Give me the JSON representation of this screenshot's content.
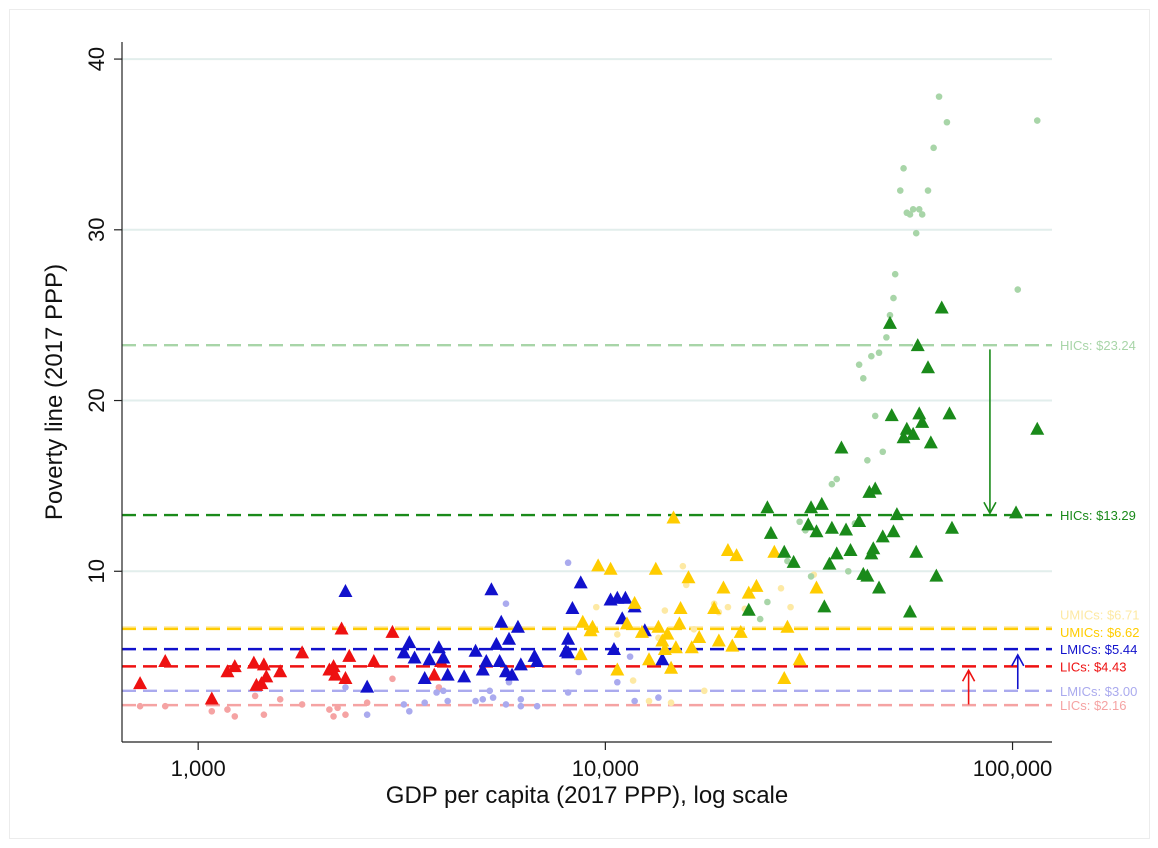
{
  "chart_data": {
    "type": "scatter",
    "title": "",
    "xlabel": "GDP per capita (2017 PPP), log scale",
    "ylabel": "Poverty line (2017 PPP)",
    "x_scale": "log",
    "xlim": [
      650,
      125000
    ],
    "ylim": [
      0,
      41
    ],
    "x_ticks": [
      1000,
      10000,
      100000
    ],
    "x_tick_labels": [
      "1,000",
      "10,000",
      "100,000"
    ],
    "y_ticks": [
      10,
      20,
      30,
      40
    ],
    "y_tick_labels": [
      "10",
      "20",
      "30",
      "40"
    ],
    "grid": "horizontal",
    "colors": {
      "LIC": "#ee1111",
      "LIC_light": "#f5a3a3",
      "LMIC": "#1111cc",
      "LMIC_light": "#aaaaee",
      "UMIC": "#ffcc00",
      "UMIC_light": "#fde9a4",
      "HIC": "#1a8a1a",
      "HIC_light": "#a8d5a8"
    },
    "reference_lines": [
      {
        "label": "HICs: $23.24",
        "value": 23.24,
        "color": "#a8d5a8"
      },
      {
        "label": "HICs: $13.29",
        "value": 13.29,
        "color": "#1a8a1a"
      },
      {
        "label": "UMICs: $6.71",
        "value": 6.71,
        "color": "#fde9a4"
      },
      {
        "label": "UMICs: $6.62",
        "value": 6.62,
        "color": "#ffcc00"
      },
      {
        "label": "LMICs: $5.44",
        "value": 5.44,
        "color": "#1111cc"
      },
      {
        "label": "LICs: $4.43",
        "value": 4.43,
        "color": "#ee1111"
      },
      {
        "label": "LMICs: $3.00",
        "value": 3.0,
        "color": "#aaaaee"
      },
      {
        "label": "LICs: $2.16",
        "value": 2.16,
        "color": "#f5a3a3"
      }
    ],
    "arrows": [
      {
        "x": 88000,
        "from": 23.0,
        "to": 13.4,
        "color": "#1a8a1a"
      },
      {
        "x": 103000,
        "from": 3.1,
        "to": 5.1,
        "color": "#1111cc"
      },
      {
        "x": 78000,
        "from": 2.2,
        "to": 4.2,
        "color": "#ee1111"
      }
    ],
    "series": [
      {
        "name": "LIC",
        "marker": "triangle",
        "color": "#ee1111",
        "points": [
          [
            720,
            3.4
          ],
          [
            830,
            4.7
          ],
          [
            1080,
            2.5
          ],
          [
            1180,
            4.1
          ],
          [
            1230,
            4.4
          ],
          [
            1370,
            4.6
          ],
          [
            1390,
            3.3
          ],
          [
            1430,
            3.4
          ],
          [
            1450,
            4.5
          ],
          [
            1470,
            3.8
          ],
          [
            1590,
            4.1
          ],
          [
            1800,
            5.2
          ],
          [
            2100,
            4.2
          ],
          [
            2150,
            4.4
          ],
          [
            2170,
            3.9
          ],
          [
            2250,
            6.6
          ],
          [
            2300,
            3.7
          ],
          [
            2350,
            5.0
          ],
          [
            2700,
            4.7
          ],
          [
            3000,
            6.4
          ],
          [
            3800,
            3.9
          ],
          [
            3950,
            4.7
          ]
        ]
      },
      {
        "name": "LIC_light",
        "marker": "dot",
        "color": "#f5a3a3",
        "points": [
          [
            720,
            2.1
          ],
          [
            830,
            2.1
          ],
          [
            1080,
            1.8
          ],
          [
            1180,
            1.9
          ],
          [
            1230,
            1.5
          ],
          [
            1380,
            2.7
          ],
          [
            1450,
            1.6
          ],
          [
            1590,
            2.5
          ],
          [
            1800,
            2.2
          ],
          [
            2100,
            1.9
          ],
          [
            2150,
            1.5
          ],
          [
            2200,
            2.0
          ],
          [
            2300,
            1.6
          ],
          [
            2600,
            2.3
          ],
          [
            3000,
            3.7
          ],
          [
            3900,
            3.2
          ]
        ]
      },
      {
        "name": "LMIC",
        "marker": "triangle",
        "color": "#1111cc",
        "points": [
          [
            2300,
            8.8
          ],
          [
            2600,
            3.2
          ],
          [
            3200,
            5.2
          ],
          [
            3300,
            5.8
          ],
          [
            3400,
            4.9
          ],
          [
            3600,
            3.7
          ],
          [
            3700,
            4.8
          ],
          [
            3900,
            5.5
          ],
          [
            4000,
            4.9
          ],
          [
            4100,
            3.9
          ],
          [
            4500,
            3.8
          ],
          [
            4800,
            5.3
          ],
          [
            5000,
            4.2
          ],
          [
            5100,
            4.7
          ],
          [
            5250,
            8.9
          ],
          [
            5400,
            5.7
          ],
          [
            5500,
            4.7
          ],
          [
            5550,
            7.0
          ],
          [
            5700,
            4.1
          ],
          [
            5800,
            6.0
          ],
          [
            5900,
            3.9
          ],
          [
            6100,
            6.7
          ],
          [
            6200,
            4.5
          ],
          [
            6700,
            5.0
          ],
          [
            6800,
            4.7
          ],
          [
            8000,
            5.3
          ],
          [
            8100,
            5.2
          ],
          [
            8100,
            6.0
          ],
          [
            8300,
            7.8
          ],
          [
            8700,
            9.3
          ],
          [
            10300,
            8.3
          ],
          [
            10500,
            5.4
          ],
          [
            10700,
            8.4
          ],
          [
            11000,
            7.2
          ],
          [
            11200,
            8.4
          ],
          [
            11800,
            7.9
          ],
          [
            12500,
            6.5
          ],
          [
            13800,
            4.8
          ]
        ]
      },
      {
        "name": "LMIC_light",
        "marker": "dot",
        "color": "#aaaaee",
        "points": [
          [
            2300,
            3.2
          ],
          [
            2600,
            1.6
          ],
          [
            3200,
            2.2
          ],
          [
            3300,
            1.8
          ],
          [
            3600,
            2.3
          ],
          [
            3850,
            2.9
          ],
          [
            4000,
            3.0
          ],
          [
            4100,
            2.4
          ],
          [
            4800,
            2.4
          ],
          [
            5000,
            2.5
          ],
          [
            5200,
            3.0
          ],
          [
            5300,
            2.6
          ],
          [
            5700,
            2.2
          ],
          [
            5700,
            8.1
          ],
          [
            5800,
            3.5
          ],
          [
            6200,
            2.1
          ],
          [
            6200,
            2.5
          ],
          [
            6800,
            2.1
          ],
          [
            8100,
            2.9
          ],
          [
            8100,
            10.5
          ],
          [
            8600,
            4.1
          ],
          [
            10700,
            3.5
          ],
          [
            11800,
            2.4
          ],
          [
            13500,
            2.6
          ],
          [
            11500,
            5.0
          ]
        ]
      },
      {
        "name": "UMIC",
        "marker": "triangle",
        "color": "#ffcc00",
        "points": [
          [
            8700,
            5.1
          ],
          [
            8800,
            7.0
          ],
          [
            9200,
            6.5
          ],
          [
            9300,
            6.7
          ],
          [
            9600,
            10.3
          ],
          [
            10300,
            10.1
          ],
          [
            10700,
            4.2
          ],
          [
            11300,
            6.9
          ],
          [
            11800,
            8.1
          ],
          [
            12300,
            6.4
          ],
          [
            12800,
            4.8
          ],
          [
            13300,
            10.1
          ],
          [
            13500,
            6.7
          ],
          [
            13800,
            5.9
          ],
          [
            14000,
            5.4
          ],
          [
            14200,
            6.3
          ],
          [
            14500,
            4.3
          ],
          [
            14700,
            13.1
          ],
          [
            14900,
            5.5
          ],
          [
            15200,
            6.9
          ],
          [
            15300,
            7.8
          ],
          [
            16000,
            9.6
          ],
          [
            16300,
            5.5
          ],
          [
            17000,
            6.1
          ],
          [
            18500,
            7.8
          ],
          [
            19000,
            5.9
          ],
          [
            19500,
            9.0
          ],
          [
            20000,
            11.2
          ],
          [
            20500,
            5.6
          ],
          [
            21000,
            10.9
          ],
          [
            21500,
            6.4
          ],
          [
            22500,
            8.7
          ],
          [
            23500,
            9.1
          ],
          [
            26000,
            11.1
          ],
          [
            27500,
            3.7
          ],
          [
            28000,
            6.7
          ],
          [
            30000,
            4.8
          ],
          [
            33000,
            9.0
          ]
        ]
      },
      {
        "name": "UMIC_light",
        "marker": "dot",
        "color": "#fde9a4",
        "points": [
          [
            9500,
            7.9
          ],
          [
            10700,
            6.3
          ],
          [
            11700,
            3.6
          ],
          [
            12800,
            2.4
          ],
          [
            13500,
            6.1
          ],
          [
            14000,
            7.7
          ],
          [
            14500,
            2.3
          ],
          [
            15500,
            10.3
          ],
          [
            15800,
            9.2
          ],
          [
            16500,
            6.6
          ],
          [
            17500,
            3.0
          ],
          [
            18500,
            8.1
          ],
          [
            19000,
            7.6
          ],
          [
            20000,
            7.9
          ],
          [
            22000,
            7.8
          ],
          [
            27000,
            9.0
          ],
          [
            28500,
            7.9
          ],
          [
            32500,
            9.8
          ]
        ]
      },
      {
        "name": "HIC",
        "marker": "triangle",
        "color": "#1a8a1a",
        "points": [
          [
            22500,
            7.7
          ],
          [
            25000,
            13.7
          ],
          [
            25500,
            12.2
          ],
          [
            27500,
            11.1
          ],
          [
            29000,
            10.5
          ],
          [
            31500,
            12.7
          ],
          [
            32000,
            13.7
          ],
          [
            33000,
            12.3
          ],
          [
            34000,
            13.9
          ],
          [
            34500,
            7.9
          ],
          [
            35500,
            10.4
          ],
          [
            36000,
            12.5
          ],
          [
            37000,
            11.0
          ],
          [
            38000,
            17.2
          ],
          [
            39000,
            12.4
          ],
          [
            40000,
            11.2
          ],
          [
            42000,
            12.9
          ],
          [
            43000,
            9.8
          ],
          [
            44000,
            9.7
          ],
          [
            44500,
            14.6
          ],
          [
            45000,
            11.0
          ],
          [
            45500,
            11.3
          ],
          [
            46000,
            14.8
          ],
          [
            47000,
            9.0
          ],
          [
            48000,
            12.0
          ],
          [
            50000,
            24.5
          ],
          [
            50500,
            19.1
          ],
          [
            51000,
            12.3
          ],
          [
            52000,
            13.3
          ],
          [
            54000,
            17.8
          ],
          [
            55000,
            18.3
          ],
          [
            56000,
            7.6
          ],
          [
            57000,
            18.0
          ],
          [
            58000,
            11.1
          ],
          [
            58500,
            23.2
          ],
          [
            59000,
            19.2
          ],
          [
            60000,
            18.7
          ],
          [
            62000,
            21.9
          ],
          [
            63000,
            17.5
          ],
          [
            65000,
            9.7
          ],
          [
            67000,
            25.4
          ],
          [
            70000,
            19.2
          ],
          [
            71000,
            12.5
          ],
          [
            102000,
            13.4
          ],
          [
            115000,
            18.3
          ]
        ]
      },
      {
        "name": "HIC_light",
        "marker": "dot",
        "color": "#a8d5a8",
        "points": [
          [
            21500,
            6.3
          ],
          [
            24000,
            7.2
          ],
          [
            25000,
            8.2
          ],
          [
            28000,
            10.6
          ],
          [
            30000,
            12.9
          ],
          [
            31000,
            12.4
          ],
          [
            32000,
            9.7
          ],
          [
            36000,
            15.1
          ],
          [
            37000,
            15.4
          ],
          [
            39500,
            10.0
          ],
          [
            41000,
            12.8
          ],
          [
            42000,
            22.1
          ],
          [
            43000,
            21.3
          ],
          [
            44000,
            16.5
          ],
          [
            45000,
            22.6
          ],
          [
            46000,
            19.1
          ],
          [
            47000,
            22.8
          ],
          [
            48000,
            17.0
          ],
          [
            49000,
            23.7
          ],
          [
            50000,
            25.0
          ],
          [
            51000,
            26.0
          ],
          [
            51500,
            27.4
          ],
          [
            53000,
            32.3
          ],
          [
            54000,
            33.6
          ],
          [
            55000,
            31.0
          ],
          [
            56000,
            30.9
          ],
          [
            57000,
            31.2
          ],
          [
            58000,
            29.8
          ],
          [
            59000,
            31.2
          ],
          [
            60000,
            30.9
          ],
          [
            62000,
            32.3
          ],
          [
            64000,
            34.8
          ],
          [
            66000,
            37.8
          ],
          [
            69000,
            36.3
          ],
          [
            103000,
            26.5
          ],
          [
            115000,
            36.4
          ]
        ]
      }
    ]
  }
}
